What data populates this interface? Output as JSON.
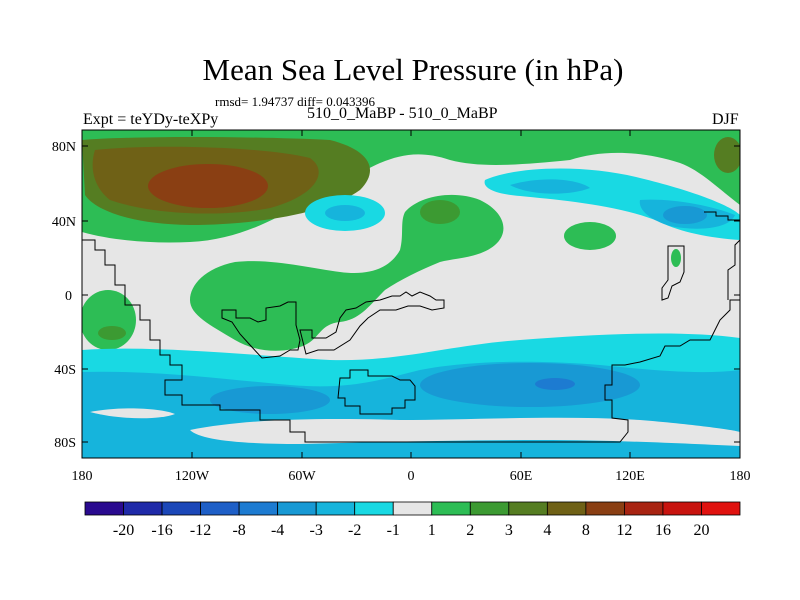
{
  "title": "Mean Sea Level Pressure (in hPa)",
  "stats_text": "rmsd= 1.94737 diff= 0.043396",
  "left_string": "Expt = teYDy-teXPy",
  "center_string": "510_0_MaBP - 510_0_MaBP",
  "right_string": "DJF",
  "lat_ticks": [
    "80N",
    "40N",
    "0",
    "40S",
    "80S"
  ],
  "lon_ticks": [
    "180",
    "120W",
    "60W",
    "0",
    "60E",
    "120E",
    "180"
  ],
  "colorbar": {
    "labels": [
      "-20",
      "-16",
      "-12",
      "-8",
      "-4",
      "-3",
      "-2",
      "-1",
      "1",
      "2",
      "3",
      "4",
      "8",
      "12",
      "16",
      "20"
    ],
    "colors": [
      "#2a0a8f",
      "#1f2aa8",
      "#1b47b8",
      "#1e5fc7",
      "#1d7bd1",
      "#1899d4",
      "#16b4dc",
      "#19d9e3",
      "#e6e6e6",
      "#2dbd55",
      "#3c9a32",
      "#557d22",
      "#6f6116",
      "#8a3f13",
      "#a82412",
      "#c8140f",
      "#e0120f"
    ]
  },
  "colors": {
    "background_field": "#e6e6e6",
    "green": "#2dbd55",
    "dark_green": "#3c9a32",
    "olive": "#557d22",
    "brown": "#6f6116",
    "rust": "#8a3f13",
    "cyan": "#19d9e3",
    "light_blue": "#16b4dc",
    "blue": "#1899d4",
    "deep_blue": "#1d7bd1"
  }
}
